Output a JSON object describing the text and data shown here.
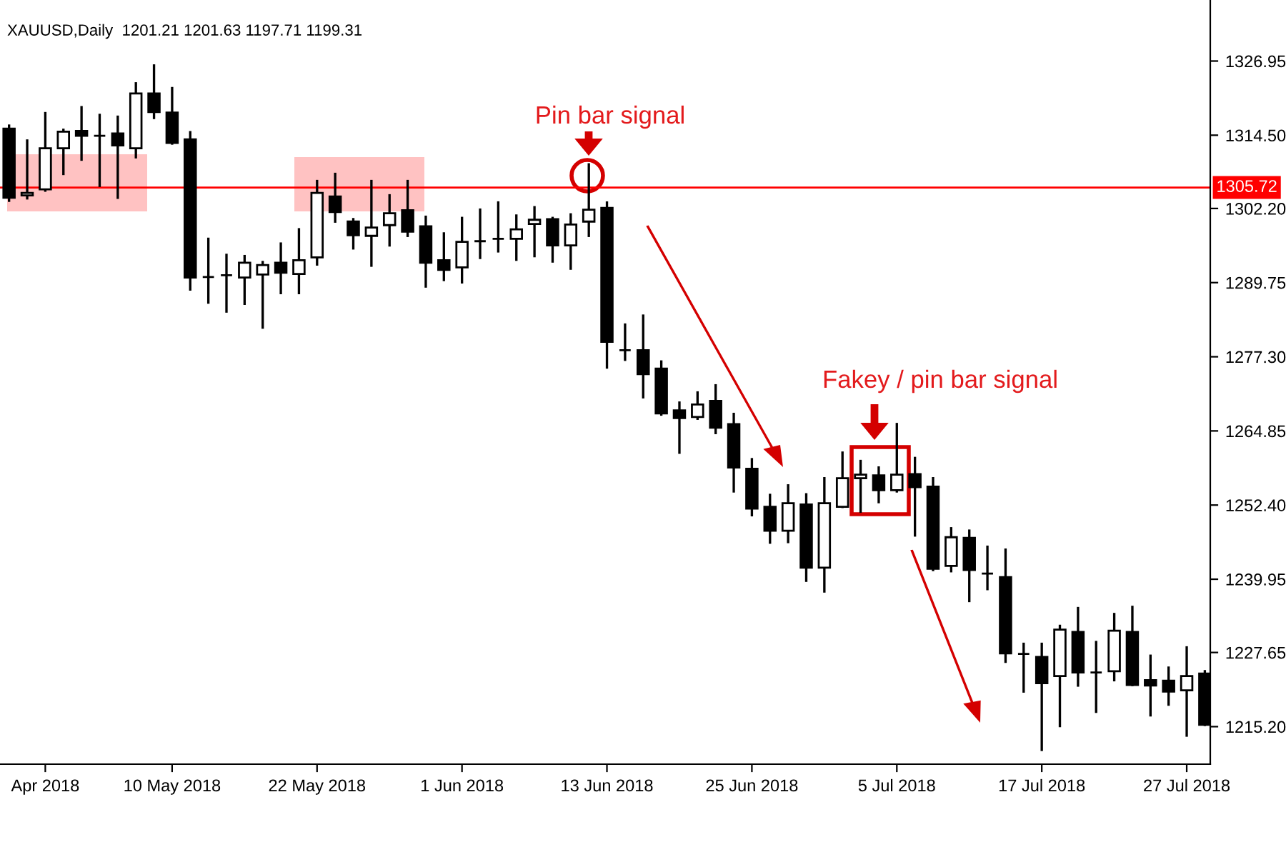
{
  "chart_data": {
    "type": "candlestick",
    "title": "XAUUSD,Daily  1201.21 1201.63 1197.71 1199.31",
    "categories": [
      null,
      null,
      "Apr 2018",
      null,
      null,
      null,
      null,
      null,
      null,
      "10 May 2018",
      null,
      null,
      null,
      null,
      null,
      null,
      null,
      "22 May 2018",
      null,
      null,
      null,
      null,
      null,
      null,
      null,
      "1 Jun 2018",
      null,
      null,
      null,
      null,
      null,
      null,
      null,
      "13 Jun 2018",
      null,
      null,
      null,
      null,
      null,
      null,
      null,
      "25 Jun 2018",
      null,
      null,
      null,
      null,
      null,
      null,
      null,
      "5 Jul 2018",
      null,
      null,
      null,
      null,
      null,
      null,
      null,
      "17 Jul 2018",
      null,
      null,
      null,
      null,
      null,
      null,
      null,
      "27 Jul 2018",
      null
    ],
    "ohlc": [
      [
        1315.6,
        1316.1,
        1303.5,
        1304.0
      ],
      [
        1304.4,
        1313.6,
        1303.9,
        1304.8
      ],
      [
        1305.4,
        1318.2,
        1305.2,
        1312.3
      ],
      [
        1312.3,
        1315.4,
        1308.0,
        1315.1
      ],
      [
        1315.2,
        1319.2,
        1310.4,
        1314.4
      ],
      [
        1314.4,
        1317.9,
        1306.0,
        1314.4
      ],
      [
        1314.8,
        1317.6,
        1304.0,
        1312.8
      ],
      [
        1312.3,
        1323.2,
        1310.8,
        1321.5
      ],
      [
        1321.5,
        1326.2,
        1317.4,
        1318.4
      ],
      [
        1318.3,
        1322.4,
        1313.1,
        1313.2
      ],
      [
        1313.8,
        1315.0,
        1288.6,
        1290.6
      ],
      [
        1290.7,
        1297.1,
        1286.4,
        1290.7
      ],
      [
        1291.0,
        1294.4,
        1284.9,
        1291.0
      ],
      [
        1290.6,
        1294.2,
        1286.2,
        1293.1
      ],
      [
        1291.1,
        1293.2,
        1282.2,
        1292.7
      ],
      [
        1293.1,
        1296.3,
        1288.0,
        1291.4
      ],
      [
        1291.2,
        1298.7,
        1288.0,
        1293.5
      ],
      [
        1294.0,
        1306.8,
        1292.8,
        1304.8
      ],
      [
        1304.2,
        1308.0,
        1300.0,
        1301.6
      ],
      [
        1300.0,
        1300.4,
        1295.5,
        1297.7
      ],
      [
        1297.6,
        1306.8,
        1292.6,
        1299.0
      ],
      [
        1299.4,
        1304.4,
        1296.0,
        1301.4
      ],
      [
        1301.9,
        1306.8,
        1297.6,
        1298.3
      ],
      [
        1299.2,
        1300.8,
        1289.1,
        1293.1
      ],
      [
        1293.5,
        1298.0,
        1290.2,
        1291.9
      ],
      [
        1292.3,
        1300.6,
        1289.8,
        1296.6
      ],
      [
        1296.7,
        1302.0,
        1293.9,
        1296.7
      ],
      [
        1297.1,
        1303.2,
        1295.0,
        1297.1
      ],
      [
        1297.1,
        1301.0,
        1293.6,
        1298.7
      ],
      [
        1299.6,
        1302.4,
        1294.2,
        1300.3
      ],
      [
        1300.4,
        1300.6,
        1293.3,
        1296.0
      ],
      [
        1296.0,
        1301.2,
        1292.1,
        1299.5
      ],
      [
        1300.0,
        1309.6,
        1297.6,
        1302.0
      ],
      [
        1302.3,
        1303.2,
        1275.5,
        1279.8
      ],
      [
        1278.4,
        1282.7,
        1276.8,
        1278.4
      ],
      [
        1278.4,
        1284.2,
        1270.5,
        1274.4
      ],
      [
        1275.3,
        1276.5,
        1267.6,
        1267.8
      ],
      [
        1268.3,
        1269.6,
        1261.2,
        1267.0
      ],
      [
        1267.2,
        1271.3,
        1266.9,
        1269.3
      ],
      [
        1269.9,
        1272.5,
        1264.5,
        1265.4
      ],
      [
        1266.0,
        1267.7,
        1254.7,
        1258.7
      ],
      [
        1258.5,
        1260.1,
        1250.7,
        1251.8
      ],
      [
        1252.1,
        1254.1,
        1246.1,
        1248.1
      ],
      [
        1248.1,
        1255.7,
        1246.2,
        1252.7
      ],
      [
        1252.5,
        1254.2,
        1239.7,
        1241.9
      ],
      [
        1241.9,
        1256.9,
        1237.9,
        1252.7
      ],
      [
        1252.1,
        1261.2,
        1252.1,
        1256.9
      ],
      [
        1256.9,
        1259.8,
        1251.3,
        1257.5
      ],
      [
        1257.4,
        1258.7,
        1252.9,
        1254.9
      ],
      [
        1254.9,
        1266.0,
        1254.7,
        1257.5
      ],
      [
        1257.6,
        1260.3,
        1247.3,
        1255.4
      ],
      [
        1255.5,
        1256.9,
        1241.5,
        1241.7
      ],
      [
        1242.2,
        1248.5,
        1241.3,
        1247.0
      ],
      [
        1246.9,
        1248.1,
        1236.3,
        1241.5
      ],
      [
        1240.9,
        1245.4,
        1238.3,
        1240.9
      ],
      [
        1240.3,
        1244.9,
        1226.1,
        1227.5
      ],
      [
        1227.4,
        1229.1,
        1221.1,
        1227.4
      ],
      [
        1226.9,
        1229.1,
        1211.3,
        1222.5
      ],
      [
        1223.7,
        1232.1,
        1215.3,
        1231.5
      ],
      [
        1231.1,
        1235.1,
        1222.1,
        1224.3
      ],
      [
        1224.3,
        1229.4,
        1217.7,
        1224.3
      ],
      [
        1224.5,
        1234.1,
        1223.0,
        1231.3
      ],
      [
        1231.1,
        1235.3,
        1222.2,
        1222.2
      ],
      [
        1223.0,
        1227.1,
        1217.1,
        1222.1
      ],
      [
        1222.9,
        1225.1,
        1218.9,
        1221.1
      ],
      [
        1221.3,
        1228.5,
        1213.7,
        1223.7
      ],
      [
        1224.1,
        1224.5,
        1215.5,
        1215.5
      ]
    ],
    "ylim": [
      1208.9,
      1337.2
    ],
    "yticks": [
      1326.95,
      {
        "value": 1314.5,
        "label": "1314.50"
      },
      {
        "value": 1302.2,
        "label": "1302.20"
      },
      1289.75,
      {
        "value": 1277.3,
        "label": "1277.30"
      },
      1264.85,
      {
        "value": 1252.4,
        "label": "1252.40"
      },
      1239.95,
      1227.65,
      {
        "value": 1215.2,
        "label": "1215.20"
      }
    ],
    "ref_lines": [
      {
        "axis": "y",
        "value": 1305.72,
        "label": "1305.72",
        "color": "#ff0000"
      }
    ],
    "annotations": [
      "Pin bar signal",
      "Fakey / pin bar signal"
    ],
    "grid": false
  }
}
